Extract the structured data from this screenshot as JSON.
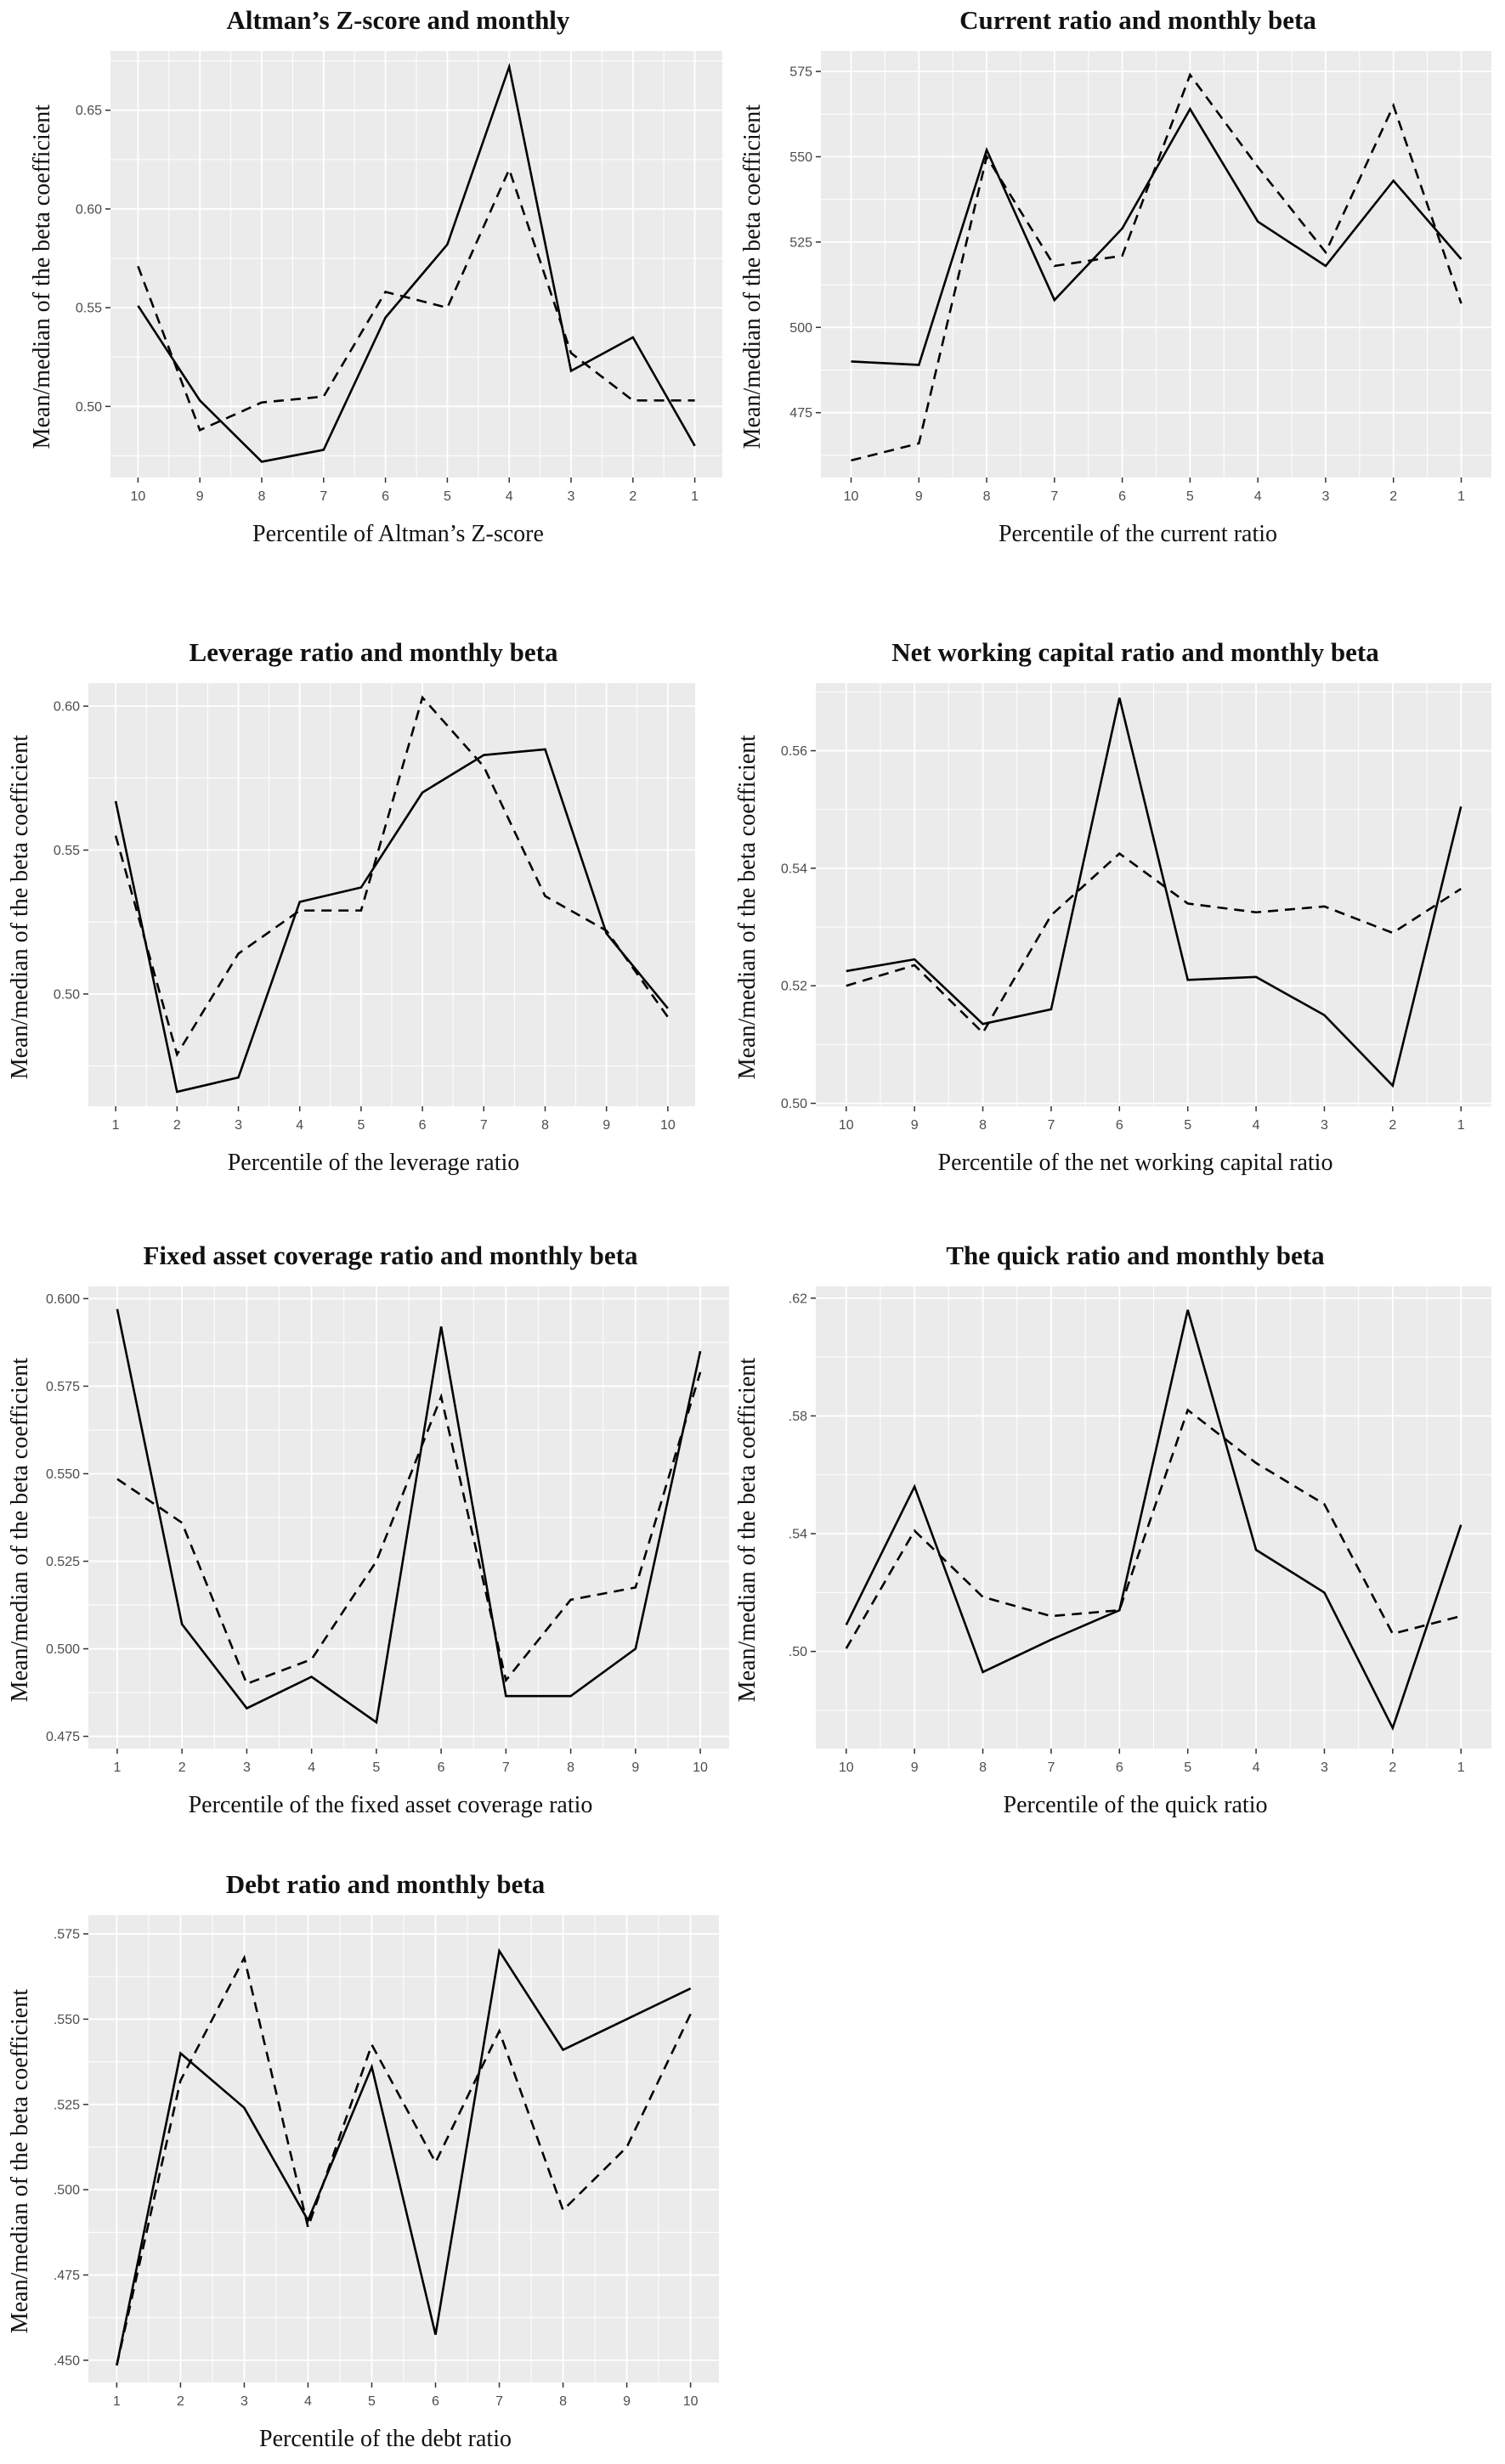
{
  "style": {
    "panel_background": "#ebebeb",
    "grid_color": "#ffffff",
    "line_color": "#000000",
    "tick_text_color": "#4d4d4d",
    "tick_mark_color": "#333333",
    "title_color": "#111111"
  },
  "chart_data": [
    {
      "type": "line",
      "title": "Altman’s Z-score and monthly",
      "xlabel": "Percentile of Altman’s Z-score",
      "ylabel": "Mean/median of the beta coefficient",
      "x_categories": [
        "10",
        "9",
        "8",
        "7",
        "6",
        "5",
        "4",
        "3",
        "2",
        "1"
      ],
      "yticks": [
        {
          "label": "0.65",
          "value": 0.65
        },
        {
          "label": "0.60",
          "value": 0.6
        },
        {
          "label": "0.55",
          "value": 0.55
        },
        {
          "label": "0.50",
          "value": 0.5
        }
      ],
      "ylim": [
        0.464,
        0.68
      ],
      "grid": true,
      "legend": "none",
      "series": [
        {
          "name": "solid",
          "style": "solid",
          "values": [
            0.551,
            0.503,
            0.472,
            0.478,
            0.545,
            0.582,
            0.672,
            0.518,
            0.535,
            0.48
          ]
        },
        {
          "name": "dashed",
          "style": "dashed",
          "values": [
            0.571,
            0.488,
            0.502,
            0.505,
            0.558,
            0.55,
            0.62,
            0.527,
            0.503,
            0.503
          ]
        }
      ]
    },
    {
      "type": "line",
      "title": "Current ratio and monthly beta",
      "xlabel": "Percentile of the current ratio",
      "ylabel": "Mean/median of the beta coefficient",
      "x_categories": [
        "10",
        "9",
        "8",
        "7",
        "6",
        "5",
        "4",
        "3",
        "2",
        "1"
      ],
      "yticks": [
        {
          "label": "575",
          "value": 575
        },
        {
          "label": "550",
          "value": 550
        },
        {
          "label": "525",
          "value": 525
        },
        {
          "label": "500",
          "value": 500
        },
        {
          "label": "475",
          "value": 475
        }
      ],
      "ylim": [
        456,
        581
      ],
      "grid": true,
      "legend": "none",
      "series": [
        {
          "name": "solid",
          "style": "solid",
          "values": [
            490,
            489,
            552,
            508,
            529,
            564,
            531,
            518,
            543,
            520
          ]
        },
        {
          "name": "dashed",
          "style": "dashed",
          "values": [
            461,
            466,
            550,
            518,
            521,
            574,
            547,
            522,
            565,
            507
          ]
        }
      ]
    },
    {
      "type": "line",
      "title": "Leverage ratio and monthly beta",
      "xlabel": "Percentile of the leverage ratio",
      "ylabel": "Mean/median of the beta coefficient",
      "x_categories": [
        "1",
        "2",
        "3",
        "4",
        "5",
        "6",
        "7",
        "8",
        "9",
        "10"
      ],
      "yticks": [
        {
          "label": "0.60",
          "value": 0.6
        },
        {
          "label": "0.55",
          "value": 0.55
        },
        {
          "label": "0.50",
          "value": 0.5
        }
      ],
      "ylim": [
        0.461,
        0.608
      ],
      "grid": true,
      "legend": "none",
      "series": [
        {
          "name": "solid",
          "style": "solid",
          "values": [
            0.567,
            0.466,
            0.471,
            0.532,
            0.537,
            0.57,
            0.583,
            0.585,
            0.521,
            0.495
          ]
        },
        {
          "name": "dashed",
          "style": "dashed",
          "values": [
            0.555,
            0.479,
            0.514,
            0.529,
            0.529,
            0.603,
            0.579,
            0.534,
            0.522,
            0.492
          ]
        }
      ]
    },
    {
      "type": "line",
      "title": "Net working capital ratio and monthly beta",
      "xlabel": "Percentile of the net working capital ratio",
      "ylabel": "Mean/median of the beta coefficient",
      "x_categories": [
        "10",
        "9",
        "8",
        "7",
        "6",
        "5",
        "4",
        "3",
        "2",
        "1"
      ],
      "yticks": [
        {
          "label": "0.56",
          "value": 0.56
        },
        {
          "label": "0.54",
          "value": 0.54
        },
        {
          "label": "0.52",
          "value": 0.52
        },
        {
          "label": "0.50",
          "value": 0.5
        }
      ],
      "ylim": [
        0.4995,
        0.5715
      ],
      "grid": true,
      "legend": "none",
      "series": [
        {
          "name": "solid",
          "style": "solid",
          "values": [
            0.5225,
            0.5245,
            0.5135,
            0.516,
            0.569,
            0.521,
            0.5215,
            0.515,
            0.503,
            0.5505
          ]
        },
        {
          "name": "dashed",
          "style": "dashed",
          "values": [
            0.52,
            0.5235,
            0.512,
            0.532,
            0.5425,
            0.534,
            0.5325,
            0.5335,
            0.529,
            0.5365
          ]
        }
      ]
    },
    {
      "type": "line",
      "title": "Fixed asset coverage ratio and monthly beta",
      "xlabel": "Percentile of the fixed asset coverage ratio",
      "ylabel": "Mean/median of the beta coefficient",
      "x_categories": [
        "1",
        "2",
        "3",
        "4",
        "5",
        "6",
        "7",
        "8",
        "9",
        "10"
      ],
      "yticks": [
        {
          "label": "0.600",
          "value": 0.6
        },
        {
          "label": "0.575",
          "value": 0.575
        },
        {
          "label": "0.550",
          "value": 0.55
        },
        {
          "label": "0.525",
          "value": 0.525
        },
        {
          "label": "0.500",
          "value": 0.5
        },
        {
          "label": "0.475",
          "value": 0.475
        }
      ],
      "ylim": [
        0.4715,
        0.6035
      ],
      "grid": true,
      "legend": "none",
      "series": [
        {
          "name": "solid",
          "style": "solid",
          "values": [
            0.597,
            0.507,
            0.483,
            0.492,
            0.479,
            0.592,
            0.4865,
            0.4865,
            0.5,
            0.585
          ]
        },
        {
          "name": "dashed",
          "style": "dashed",
          "values": [
            0.5485,
            0.536,
            0.49,
            0.497,
            0.525,
            0.572,
            0.491,
            0.514,
            0.5175,
            0.579
          ]
        }
      ]
    },
    {
      "type": "line",
      "title": "The quick ratio and monthly beta",
      "xlabel": "Percentile of the quick ratio",
      "ylabel": "Mean/median of the beta coefficient",
      "x_categories": [
        "10",
        "9",
        "8",
        "7",
        "6",
        "5",
        "4",
        "3",
        "2",
        "1"
      ],
      "yticks": [
        {
          "label": ".62",
          "value": 0.62
        },
        {
          "label": ".58",
          "value": 0.58
        },
        {
          "label": ".54",
          "value": 0.54
        },
        {
          "label": ".50",
          "value": 0.5
        }
      ],
      "ylim": [
        0.467,
        0.624
      ],
      "grid": true,
      "legend": "none",
      "series": [
        {
          "name": "solid",
          "style": "solid",
          "values": [
            0.509,
            0.556,
            0.493,
            0.504,
            0.514,
            0.616,
            0.5345,
            0.52,
            0.474,
            0.543
          ]
        },
        {
          "name": "dashed",
          "style": "dashed",
          "values": [
            0.501,
            0.541,
            0.5185,
            0.512,
            0.514,
            0.582,
            0.564,
            0.55,
            0.506,
            0.512
          ]
        }
      ]
    },
    {
      "type": "line",
      "title": "Debt ratio and monthly beta",
      "xlabel": "Percentile of the debt ratio",
      "ylabel": "Mean/median of the beta coefficient",
      "x_categories": [
        "1",
        "2",
        "3",
        "4",
        "5",
        "6",
        "7",
        "8",
        "9",
        "10"
      ],
      "yticks": [
        {
          "label": ".575",
          "value": 0.575
        },
        {
          "label": ".550",
          "value": 0.55
        },
        {
          "label": ".525",
          "value": 0.525
        },
        {
          "label": ".500",
          "value": 0.5
        },
        {
          "label": ".475",
          "value": 0.475
        },
        {
          "label": ".450",
          "value": 0.45
        }
      ],
      "ylim": [
        0.4435,
        0.5805
      ],
      "grid": true,
      "legend": "none",
      "series": [
        {
          "name": "solid",
          "style": "solid",
          "values": [
            0.4485,
            0.54,
            0.524,
            0.491,
            0.536,
            0.4575,
            0.57,
            0.541,
            0.55,
            0.559
          ]
        },
        {
          "name": "dashed",
          "style": "dashed",
          "values": [
            0.4485,
            0.532,
            0.568,
            0.489,
            0.5425,
            0.508,
            0.5465,
            0.494,
            0.5125,
            0.5515
          ]
        }
      ]
    }
  ]
}
